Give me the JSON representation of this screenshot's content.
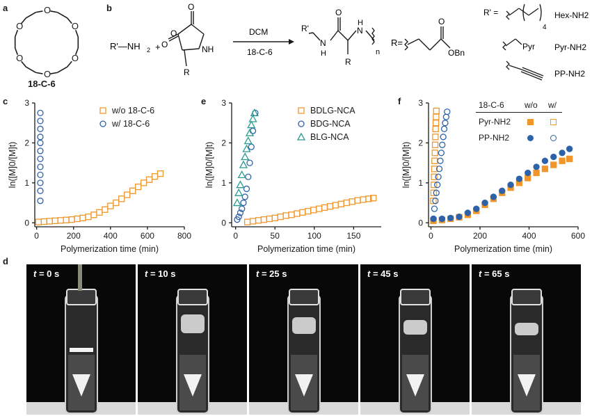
{
  "panels": {
    "a": {
      "letter": "a",
      "name": "18-C-6"
    },
    "b": {
      "letter": "b",
      "reagent_amine": "R'—NH",
      "sub2": "2",
      "plus": "+",
      "ring_N": "NH",
      "ring_R": "R",
      "arrow_top": "DCM",
      "arrow_bottom": "18-C-6",
      "product_Rprime": "R'",
      "product_H": "H",
      "product_N": "N",
      "product_NH": "N",
      "product_H2": "H",
      "product_n": "n",
      "product_R": "R",
      "r_def": "R=",
      "obn": "OBn",
      "rprime_def": "R' =",
      "four": "4",
      "pyr": "Pyr",
      "initiators": [
        "Hex-NH2",
        "Pyr-NH2",
        "PP-NH2"
      ]
    },
    "c": {
      "letter": "c"
    },
    "e": {
      "letter": "e"
    },
    "f": {
      "letter": "f",
      "table_header": [
        "18-C-6",
        "w/o",
        "w/"
      ],
      "table_rows": [
        "Pyr-NH2",
        "PP-NH2"
      ]
    },
    "d": {
      "letter": "d",
      "frames": [
        {
          "t": "t",
          "value": " = 0 s"
        },
        {
          "t": "t",
          "value": " = 10 s"
        },
        {
          "t": "t",
          "value": " = 25 s"
        },
        {
          "t": "t",
          "value": " = 45 s"
        },
        {
          "t": "t",
          "value": " = 65 s"
        }
      ]
    }
  },
  "colors": {
    "orange": "#f0962a",
    "blue": "#2e62a8",
    "teal": "#2a9b8f"
  },
  "chart_data": [
    {
      "panel": "c",
      "type": "scatter",
      "xlabel": "Polymerization time (min)",
      "ylabel": "ln([M]0/[M]t)",
      "xlim": [
        -10,
        800
      ],
      "ylim": [
        -0.1,
        3
      ],
      "xticks": [
        0,
        200,
        400,
        600,
        800
      ],
      "yticks": [
        0,
        1,
        2,
        3
      ],
      "legend": "top-right",
      "series": [
        {
          "name": "w/o 18-C-6",
          "marker": "square-open",
          "color": "#f0962a",
          "x": [
            10,
            40,
            70,
            100,
            130,
            160,
            190,
            220,
            250,
            280,
            310,
            340,
            370,
            400,
            430,
            460,
            490,
            520,
            550,
            580,
            610,
            640,
            670
          ],
          "y": [
            0.02,
            0.03,
            0.04,
            0.05,
            0.06,
            0.07,
            0.08,
            0.1,
            0.12,
            0.15,
            0.2,
            0.26,
            0.33,
            0.42,
            0.5,
            0.6,
            0.7,
            0.8,
            0.9,
            1.0,
            1.08,
            1.16,
            1.23
          ]
        },
        {
          "name": "w/ 18-C-6",
          "marker": "circle-open",
          "color": "#2e62a8",
          "x": [
            20,
            20,
            20,
            20,
            20,
            20,
            20,
            20,
            20,
            20,
            20,
            20
          ],
          "y": [
            0.55,
            0.8,
            1.0,
            1.2,
            1.4,
            1.6,
            1.8,
            2.0,
            2.15,
            2.35,
            2.55,
            2.75
          ]
        }
      ]
    },
    {
      "panel": "e",
      "type": "scatter",
      "xlabel": "Polymerization time (min)",
      "ylabel": "ln([M]0/[M]t)",
      "xlim": [
        -5,
        185
      ],
      "ylim": [
        -0.1,
        3
      ],
      "xticks": [
        0,
        50,
        100,
        150
      ],
      "yticks": [
        0,
        1,
        2,
        3
      ],
      "legend": "top-right",
      "series": [
        {
          "name": "BDLG-NCA",
          "marker": "square-open",
          "color": "#f0962a",
          "x": [
            15,
            22,
            29,
            36,
            43,
            50,
            57,
            64,
            71,
            78,
            85,
            92,
            99,
            106,
            113,
            120,
            127,
            134,
            141,
            148,
            155,
            162,
            169,
            175
          ],
          "y": [
            0.02,
            0.04,
            0.06,
            0.08,
            0.1,
            0.12,
            0.15,
            0.18,
            0.2,
            0.23,
            0.26,
            0.29,
            0.32,
            0.35,
            0.38,
            0.41,
            0.44,
            0.47,
            0.5,
            0.53,
            0.56,
            0.58,
            0.6,
            0.62
          ]
        },
        {
          "name": "BDG-NCA",
          "marker": "circle-open",
          "color": "#2e62a8",
          "x": [
            2,
            4,
            6,
            8,
            10,
            12,
            14,
            16,
            18,
            20,
            22,
            25
          ],
          "y": [
            0.08,
            0.15,
            0.25,
            0.35,
            0.5,
            0.65,
            0.85,
            1.15,
            1.5,
            1.9,
            2.3,
            2.75
          ]
        },
        {
          "name": "BLG-NCA",
          "marker": "triangle-open",
          "color": "#2a9b8f",
          "x": [
            2,
            4,
            6,
            8,
            10,
            12,
            14,
            16,
            18,
            20,
            22,
            24
          ],
          "y": [
            0.5,
            0.75,
            0.95,
            1.2,
            1.45,
            1.65,
            1.85,
            2.05,
            2.25,
            2.45,
            2.6,
            2.75
          ]
        }
      ]
    },
    {
      "panel": "f",
      "type": "scatter",
      "xlabel": "Polymerization time (min)",
      "ylabel": "ln([M]0/[M]t)",
      "xlim": [
        -10,
        600
      ],
      "ylim": [
        -0.1,
        3
      ],
      "xticks": [
        0,
        200,
        400,
        600
      ],
      "yticks": [
        0,
        1,
        2,
        3
      ],
      "series": [
        {
          "name": "Pyr-NH2 w/o",
          "marker": "square-filled",
          "color": "#f0962a",
          "x": [
            10,
            45,
            80,
            115,
            150,
            185,
            220,
            255,
            290,
            325,
            360,
            395,
            430,
            465,
            500,
            535,
            565
          ],
          "y": [
            0.05,
            0.07,
            0.1,
            0.14,
            0.2,
            0.3,
            0.45,
            0.6,
            0.75,
            0.88,
            1.0,
            1.12,
            1.25,
            1.35,
            1.45,
            1.55,
            1.6
          ]
        },
        {
          "name": "Pyr-NH2 w/",
          "marker": "square-open",
          "color": "#f0962a",
          "x": [
            10,
            11,
            12,
            13,
            14,
            15,
            16,
            17,
            18,
            19,
            20,
            21,
            22
          ],
          "y": [
            0.55,
            0.75,
            0.95,
            1.15,
            1.35,
            1.55,
            1.75,
            1.95,
            2.15,
            2.35,
            2.5,
            2.65,
            2.8
          ]
        },
        {
          "name": "PP-NH2 w/o",
          "marker": "circle-filled",
          "color": "#2e62a8",
          "x": [
            10,
            45,
            80,
            115,
            150,
            185,
            220,
            255,
            290,
            325,
            360,
            395,
            430,
            465,
            500,
            535,
            565
          ],
          "y": [
            0.1,
            0.1,
            0.12,
            0.15,
            0.25,
            0.35,
            0.5,
            0.65,
            0.8,
            0.95,
            1.1,
            1.25,
            1.4,
            1.55,
            1.65,
            1.75,
            1.85
          ]
        },
        {
          "name": "PP-NH2 w/",
          "marker": "circle-open",
          "color": "#2e62a8",
          "x": [
            10,
            14,
            18,
            22,
            26,
            30,
            34,
            38,
            42,
            46,
            50,
            54,
            58,
            62,
            66
          ],
          "y": [
            0.1,
            0.35,
            0.55,
            0.75,
            0.95,
            1.15,
            1.35,
            1.55,
            1.75,
            1.95,
            2.15,
            2.35,
            2.5,
            2.65,
            2.78
          ]
        }
      ]
    }
  ]
}
